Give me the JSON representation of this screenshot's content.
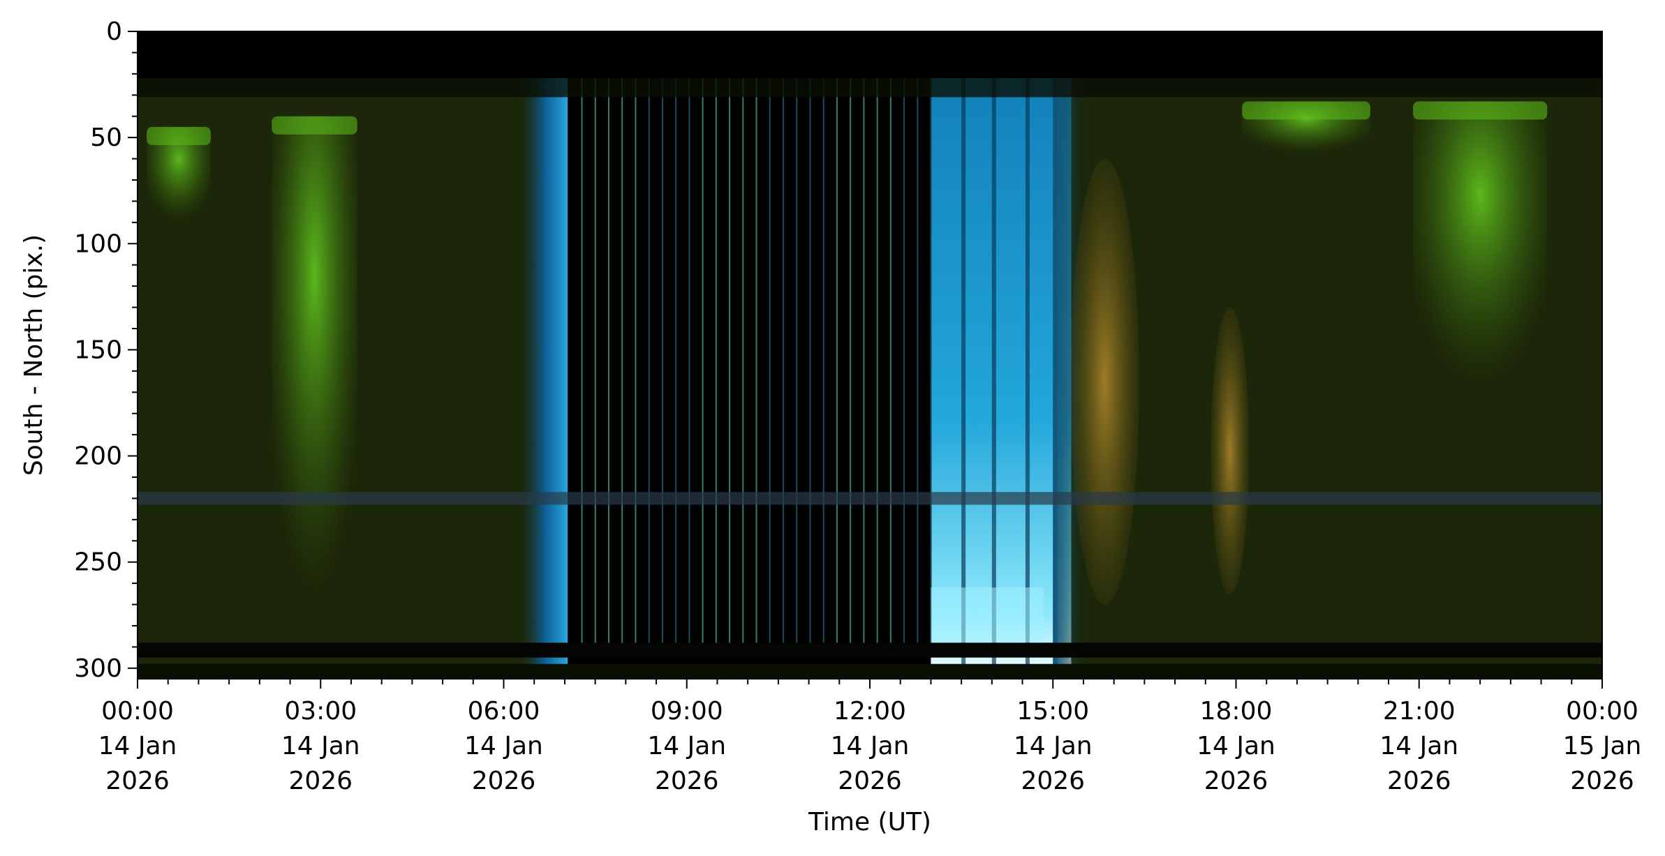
{
  "chart_data": {
    "type": "heatmap",
    "description_free": true,
    "xlabel": "Time (UT)",
    "ylabel": "South - North (pix.)",
    "xlim": [
      "2026-01-14 00:00",
      "2026-01-15 00:00"
    ],
    "ylim": [
      305,
      0
    ],
    "y_inverted": true,
    "grid": false,
    "yticks": [
      0,
      50,
      100,
      150,
      200,
      250,
      300
    ],
    "xticks": [
      {
        "time": "00:00",
        "day": "14 Jan",
        "year": "2026",
        "hour": 0
      },
      {
        "time": "03:00",
        "day": "14 Jan",
        "year": "2026",
        "hour": 3
      },
      {
        "time": "06:00",
        "day": "14 Jan",
        "year": "2026",
        "hour": 6
      },
      {
        "time": "09:00",
        "day": "14 Jan",
        "year": "2026",
        "hour": 9
      },
      {
        "time": "12:00",
        "day": "14 Jan",
        "year": "2026",
        "hour": 12
      },
      {
        "time": "15:00",
        "day": "14 Jan",
        "year": "2026",
        "hour": 15
      },
      {
        "time": "18:00",
        "day": "14 Jan",
        "year": "2026",
        "hour": 18
      },
      {
        "time": "21:00",
        "day": "14 Jan",
        "year": "2026",
        "hour": 21
      },
      {
        "time": "00:00",
        "day": "15 Jan",
        "year": "2026",
        "hour": 24
      }
    ],
    "regions": [
      {
        "name": "night-green",
        "start_hour": 0.0,
        "end_hour": 6.2,
        "color": "#1c2608"
      },
      {
        "name": "twilight-blue",
        "start_hour": 6.2,
        "end_hour": 7.05,
        "color": "#0e5a8a"
      },
      {
        "name": "daylight-dark",
        "start_hour": 7.05,
        "end_hour": 13.0,
        "color": "#000000"
      },
      {
        "name": "twilight-cyan",
        "start_hour": 13.0,
        "end_hour": 15.3,
        "color": "#1a9ad0"
      },
      {
        "name": "night-green",
        "start_hour": 15.3,
        "end_hour": 24.0,
        "color": "#1c2608"
      }
    ],
    "aurora_green": [
      {
        "start_hour": 0.15,
        "end_hour": 1.2,
        "top_pix": 45,
        "bottom_pix": 95
      },
      {
        "start_hour": 2.2,
        "end_hour": 3.6,
        "top_pix": 40,
        "bottom_pix": 290
      },
      {
        "start_hour": 18.1,
        "end_hour": 20.2,
        "top_pix": 33,
        "bottom_pix": 60
      },
      {
        "start_hour": 20.9,
        "end_hour": 23.1,
        "top_pix": 33,
        "bottom_pix": 180
      }
    ],
    "aurora_yellow": [
      {
        "start_hour": 15.4,
        "end_hour": 16.3,
        "top_pix": 60,
        "bottom_pix": 270
      },
      {
        "start_hour": 17.7,
        "end_hour": 18.1,
        "top_pix": 130,
        "bottom_pix": 265
      }
    ],
    "colors": {
      "background": "#1c2608",
      "horizon_band": "#0a0f04",
      "blue_band": "#2a3a4a",
      "green": "#5fbf1c",
      "cyan": "#4fd8f4",
      "yellow": "#b08a2a"
    }
  }
}
